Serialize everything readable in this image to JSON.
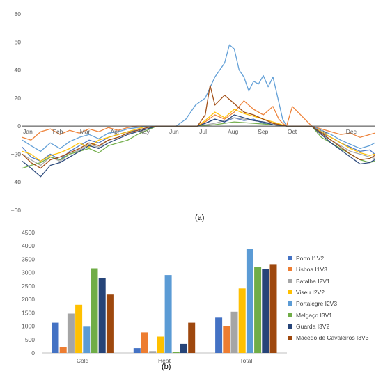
{
  "chart_data": [
    {
      "type": "line",
      "caption": "(a)",
      "y_ticks": [
        80,
        60,
        40,
        20,
        0,
        -20,
        -40,
        -60
      ],
      "ylim": [
        -60,
        80
      ],
      "x_month_labels": [
        "Jan",
        "Feb",
        "Mar",
        "Apr",
        "May",
        "Jun",
        "Jul",
        "Aug",
        "Sep",
        "Oct",
        "Nov",
        "Dec"
      ],
      "x_month_days": [
        1,
        32,
        60,
        91,
        121,
        152,
        182,
        213,
        244,
        274,
        305,
        335
      ],
      "xlim": [
        1,
        365
      ],
      "series_colors": [
        "#4472C4",
        "#ED7D31",
        "#A5A5A5",
        "#FFC000",
        "#5B9BD5",
        "#70AD47",
        "#264478",
        "#9E480E"
      ],
      "series": [
        {
          "color": "#4472C4",
          "x": [
            1,
            10,
            20,
            30,
            40,
            50,
            60,
            70,
            80,
            90,
            100,
            110,
            120,
            130,
            140,
            182,
            190,
            200,
            210,
            220,
            230,
            240,
            250,
            260,
            274,
            300,
            310,
            320,
            330,
            340,
            350,
            360,
            365
          ],
          "y": [
            -15,
            -22,
            -25,
            -20,
            -24,
            -18,
            -14,
            -10,
            -12,
            -8,
            -6,
            -4,
            -3,
            -1,
            0,
            0,
            2,
            5,
            3,
            6,
            4,
            5,
            2,
            1,
            0,
            0,
            -5,
            -8,
            -12,
            -15,
            -18,
            -17,
            -20
          ]
        },
        {
          "color": "#ED7D31",
          "x": [
            1,
            10,
            20,
            30,
            40,
            50,
            60,
            70,
            80,
            90,
            100,
            110,
            120,
            130,
            140,
            182,
            190,
            200,
            210,
            220,
            230,
            240,
            250,
            260,
            266,
            270,
            274,
            280,
            300,
            310,
            320,
            330,
            340,
            350,
            360,
            365
          ],
          "y": [
            -8,
            -10,
            -4,
            -2,
            -6,
            -3,
            -5,
            -2,
            -4,
            -1,
            -3,
            -1,
            0,
            0,
            0,
            0,
            3,
            8,
            5,
            10,
            18,
            12,
            8,
            14,
            5,
            2,
            0,
            14,
            0,
            -2,
            -4,
            -6,
            -5,
            -8,
            -6,
            -5
          ]
        },
        {
          "color": "#A5A5A5",
          "x": [
            1,
            10,
            20,
            30,
            40,
            50,
            60,
            70,
            80,
            90,
            100,
            110,
            120,
            130,
            140,
            182,
            200,
            220,
            240,
            260,
            274,
            300,
            310,
            320,
            330,
            340,
            350,
            360,
            365
          ],
          "y": [
            -20,
            -24,
            -28,
            -22,
            -25,
            -20,
            -17,
            -13,
            -15,
            -10,
            -8,
            -5,
            -4,
            -2,
            0,
            0,
            2,
            6,
            4,
            2,
            0,
            0,
            -6,
            -10,
            -14,
            -18,
            -20,
            -22,
            -23
          ]
        },
        {
          "color": "#FFC000",
          "x": [
            1,
            10,
            20,
            30,
            40,
            50,
            60,
            70,
            80,
            90,
            100,
            110,
            120,
            130,
            140,
            182,
            190,
            200,
            210,
            220,
            230,
            240,
            250,
            260,
            274,
            300,
            310,
            320,
            330,
            340,
            350,
            360,
            365
          ],
          "y": [
            -18,
            -20,
            -25,
            -21,
            -19,
            -16,
            -12,
            -15,
            -10,
            -8,
            -6,
            -4,
            -2,
            0,
            0,
            0,
            4,
            10,
            6,
            12,
            9,
            7,
            5,
            3,
            0,
            0,
            -4,
            -8,
            -12,
            -16,
            -19,
            -21,
            -20
          ]
        },
        {
          "color": "#5B9BD5",
          "x": [
            1,
            10,
            20,
            30,
            40,
            50,
            60,
            70,
            80,
            90,
            100,
            110,
            120,
            130,
            140,
            160,
            170,
            180,
            190,
            200,
            210,
            215,
            220,
            225,
            230,
            235,
            240,
            245,
            250,
            255,
            260,
            265,
            270,
            274,
            300,
            310,
            320,
            330,
            340,
            350,
            360,
            365
          ],
          "y": [
            -10,
            -14,
            -18,
            -12,
            -16,
            -11,
            -8,
            -6,
            -9,
            -5,
            -4,
            -2,
            -1,
            0,
            0,
            0,
            5,
            15,
            20,
            35,
            45,
            58,
            55,
            40,
            35,
            25,
            32,
            30,
            36,
            28,
            35,
            20,
            5,
            0,
            0,
            -3,
            -6,
            -10,
            -13,
            -16,
            -14,
            -12
          ]
        },
        {
          "color": "#70AD47",
          "x": [
            1,
            10,
            20,
            30,
            40,
            50,
            60,
            70,
            80,
            90,
            100,
            110,
            120,
            130,
            140,
            182,
            200,
            220,
            240,
            260,
            274,
            300,
            310,
            320,
            330,
            340,
            350,
            360,
            365
          ],
          "y": [
            -30,
            -28,
            -26,
            -22,
            -24,
            -20,
            -18,
            -16,
            -19,
            -14,
            -12,
            -10,
            -6,
            -3,
            0,
            0,
            1,
            3,
            2,
            1,
            0,
            0,
            -8,
            -12,
            -16,
            -20,
            -24,
            -26,
            -25
          ]
        },
        {
          "color": "#264478",
          "x": [
            1,
            10,
            20,
            30,
            40,
            50,
            60,
            70,
            80,
            90,
            100,
            110,
            120,
            130,
            140,
            182,
            190,
            200,
            210,
            220,
            230,
            240,
            250,
            260,
            274,
            300,
            310,
            320,
            330,
            340,
            350,
            360,
            365
          ],
          "y": [
            -25,
            -30,
            -36,
            -28,
            -26,
            -22,
            -18,
            -14,
            -16,
            -12,
            -9,
            -6,
            -4,
            -2,
            0,
            0,
            2,
            5,
            3,
            8,
            6,
            4,
            3,
            1,
            0,
            0,
            -6,
            -12,
            -17,
            -22,
            -27,
            -26,
            -24
          ]
        },
        {
          "color": "#9E480E",
          "x": [
            1,
            10,
            20,
            30,
            40,
            50,
            60,
            70,
            80,
            90,
            100,
            110,
            120,
            130,
            140,
            182,
            190,
            195,
            200,
            210,
            220,
            230,
            240,
            250,
            260,
            274,
            300,
            310,
            320,
            330,
            340,
            350,
            360,
            365
          ],
          "y": [
            -20,
            -26,
            -30,
            -24,
            -22,
            -19,
            -16,
            -12,
            -14,
            -10,
            -8,
            -5,
            -3,
            -1,
            0,
            0,
            8,
            29,
            15,
            22,
            16,
            10,
            8,
            5,
            2,
            0,
            0,
            -5,
            -10,
            -15,
            -20,
            -24,
            -23,
            -21
          ]
        }
      ]
    },
    {
      "type": "bar",
      "caption": "(b)",
      "categories": [
        "Cold",
        "Heat",
        "Total"
      ],
      "y_ticks": [
        4500,
        4000,
        3500,
        3000,
        2500,
        2000,
        1500,
        1000,
        500,
        0
      ],
      "ylim": [
        0,
        4500
      ],
      "series": [
        {
          "name": "Porto I1V2",
          "color": "#4472C4",
          "values": [
            1130,
            180,
            1320
          ]
        },
        {
          "name": "Lisboa I1V3",
          "color": "#ED7D31",
          "values": [
            230,
            770,
            1000
          ]
        },
        {
          "name": "Batalha I2V1",
          "color": "#A5A5A5",
          "values": [
            1470,
            70,
            1540
          ]
        },
        {
          "name": "Viseu I2V2",
          "color": "#FFC000",
          "values": [
            1800,
            610,
            2410
          ]
        },
        {
          "name": "Portalegre I2V3",
          "color": "#5B9BD5",
          "values": [
            980,
            2910,
            3900
          ]
        },
        {
          "name": "Melgaço I3V1",
          "color": "#70AD47",
          "values": [
            3160,
            40,
            3200
          ]
        },
        {
          "name": "Guarda I3V2",
          "color": "#264478",
          "values": [
            2800,
            340,
            3140
          ]
        },
        {
          "name": "Macedo de Cavaleiros I3V3",
          "color": "#9E480E",
          "values": [
            2180,
            1130,
            3320
          ]
        }
      ]
    }
  ]
}
